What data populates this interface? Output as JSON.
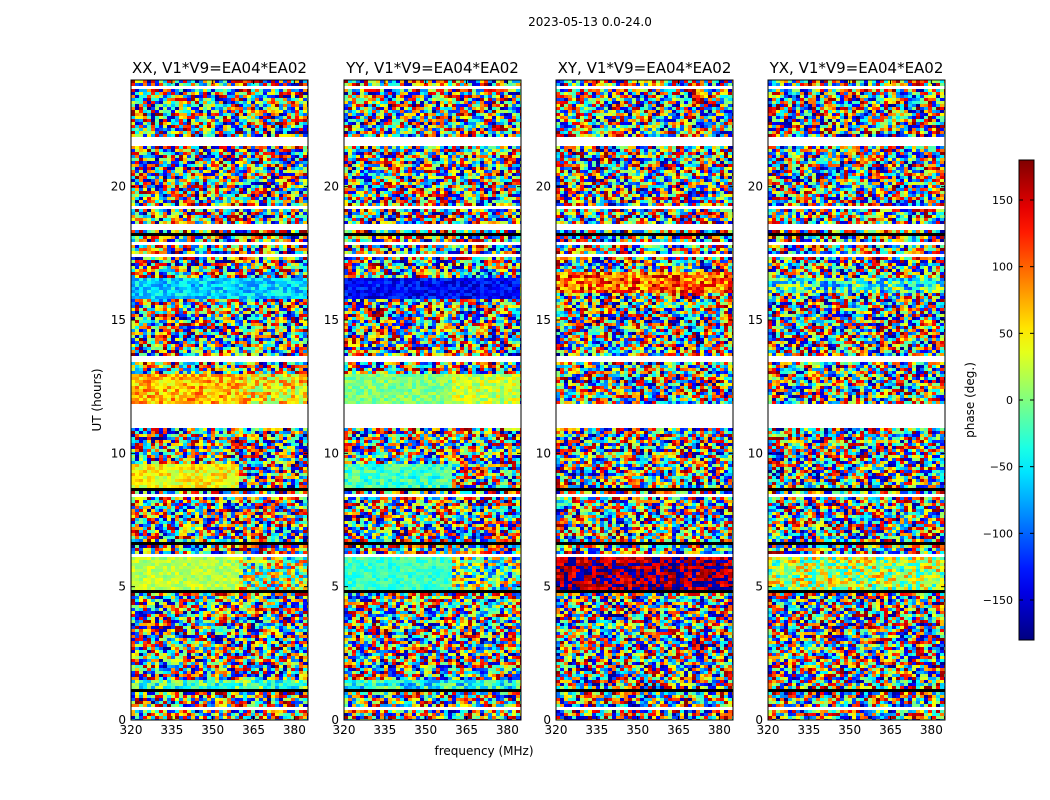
{
  "figure": {
    "suptitle": "2023-05-13 0.0-24.0",
    "xlabel": "frequency (MHz)",
    "ylabel": "UT (hours)",
    "colorbar_label": "phase (deg.)"
  },
  "chart_data": {
    "type": "heatmap",
    "title": "2023-05-13 0.0-24.0",
    "xlabel": "frequency (MHz)",
    "ylabel": "UT (hours)",
    "xlim": [
      320,
      385
    ],
    "ylim": [
      0,
      24
    ],
    "xticks": [
      320,
      335,
      350,
      365,
      380
    ],
    "yticks": [
      0,
      5,
      10,
      15,
      20
    ],
    "colorbar": {
      "label": "phase (deg.)",
      "range": [
        -180,
        180
      ],
      "ticks": [
        -150,
        -100,
        -50,
        0,
        50,
        100,
        150
      ],
      "tick_labels": [
        "−150",
        "−100",
        "−50",
        "0",
        "50",
        "100",
        "150"
      ],
      "colormap": "jet"
    },
    "panels": [
      {
        "title": "XX, V1*V9=EA04*EA02",
        "features": [
          {
            "t0": 1.2,
            "t1": 1.5,
            "f0": 320,
            "f1": 385,
            "phase": -20,
            "noise": 60
          },
          {
            "t0": 4.8,
            "t1": 6.2,
            "f0": 320,
            "f1": 360,
            "phase": 20,
            "noise": 25
          },
          {
            "t0": 4.8,
            "t1": 6.2,
            "f0": 360,
            "f1": 385,
            "phase": 10,
            "noise": 120
          },
          {
            "t0": 8.7,
            "t1": 9.6,
            "f0": 320,
            "f1": 360,
            "phase": 45,
            "noise": 35
          },
          {
            "t0": 11.8,
            "t1": 13.0,
            "f0": 320,
            "f1": 360,
            "phase": 70,
            "noise": 45
          },
          {
            "t0": 11.8,
            "t1": 13.0,
            "f0": 360,
            "f1": 385,
            "phase": 50,
            "noise": 60
          },
          {
            "t0": 15.8,
            "t1": 16.6,
            "f0": 320,
            "f1": 385,
            "phase": -60,
            "noise": 35
          }
        ]
      },
      {
        "title": "YY, V1*V9=EA04*EA02",
        "features": [
          {
            "t0": 1.2,
            "t1": 1.5,
            "f0": 320,
            "f1": 385,
            "phase": -40,
            "noise": 60
          },
          {
            "t0": 4.8,
            "t1": 6.2,
            "f0": 320,
            "f1": 360,
            "phase": -25,
            "noise": 25
          },
          {
            "t0": 4.8,
            "t1": 6.2,
            "f0": 360,
            "f1": 385,
            "phase": -10,
            "noise": 120
          },
          {
            "t0": 8.7,
            "t1": 9.6,
            "f0": 320,
            "f1": 360,
            "phase": -25,
            "noise": 35
          },
          {
            "t0": 11.8,
            "t1": 13.0,
            "f0": 320,
            "f1": 360,
            "phase": 0,
            "noise": 25
          },
          {
            "t0": 11.8,
            "t1": 13.0,
            "f0": 360,
            "f1": 385,
            "phase": 25,
            "noise": 35
          },
          {
            "t0": 15.8,
            "t1": 16.6,
            "f0": 320,
            "f1": 385,
            "phase": -135,
            "noise": 30
          }
        ]
      },
      {
        "title": "XY, V1*V9=EA04*EA02",
        "features": [
          {
            "t0": 4.8,
            "t1": 6.2,
            "f0": 320,
            "f1": 385,
            "phase": 165,
            "noise": 45
          },
          {
            "t0": 16.0,
            "t1": 16.8,
            "f0": 320,
            "f1": 385,
            "phase": 100,
            "noise": 70
          }
        ]
      },
      {
        "title": "YX, V1*V9=EA04*EA02",
        "features": [
          {
            "t0": 4.8,
            "t1": 6.2,
            "f0": 320,
            "f1": 385,
            "phase": 20,
            "noise": 80
          },
          {
            "t0": 16.0,
            "t1": 16.6,
            "f0": 320,
            "f1": 385,
            "phase": -30,
            "noise": 90
          }
        ]
      }
    ],
    "flagged_ut_ranges": [
      [
        11.0,
        11.8
      ],
      [
        13.4,
        13.6
      ],
      [
        18.4,
        18.6
      ],
      [
        21.5,
        21.9
      ]
    ]
  }
}
